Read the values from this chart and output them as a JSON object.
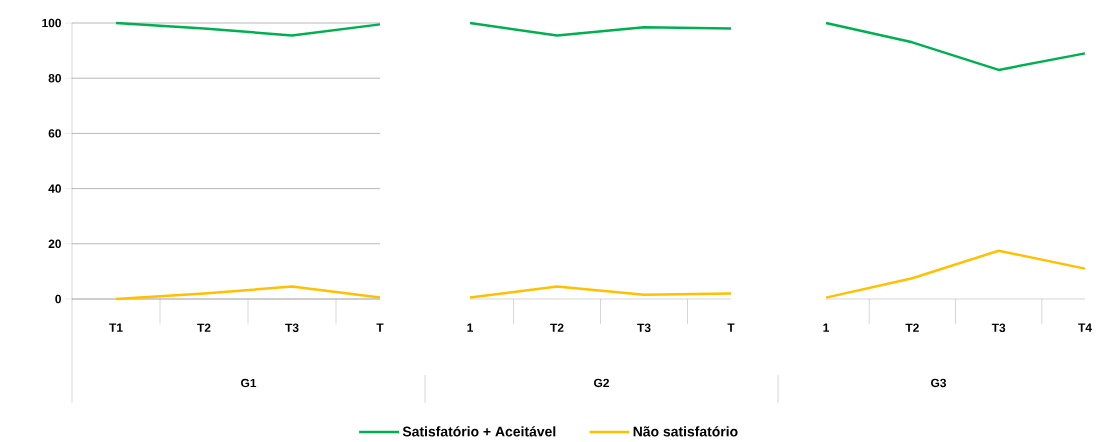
{
  "chart_data": [
    {
      "type": "line",
      "xlabel": "G1",
      "categories": [
        "T1",
        "T2",
        "T3",
        "T"
      ],
      "ylim": [
        0,
        100
      ],
      "yticks": [
        0,
        20,
        40,
        60,
        80,
        100
      ],
      "grid": "y",
      "legend": "bottom",
      "series": [
        {
          "name": "Satisfatório + Aceitável",
          "color": "#00b050",
          "values": [
            100,
            98,
            95.5,
            99.5
          ]
        },
        {
          "name": "Não satisfatório",
          "color": "#ffc000",
          "values": [
            0,
            2,
            4.5,
            0.5
          ]
        }
      ]
    },
    {
      "type": "line",
      "xlabel": "G2",
      "categories": [
        "1",
        "T2",
        "T3",
        "T"
      ],
      "ylim": [
        0,
        100
      ],
      "yticks": [
        0,
        20,
        40,
        60,
        80,
        100
      ],
      "grid": "y",
      "tick_labels": "x",
      "series": [
        {
          "color": "#00b050",
          "values": [
            100,
            95.5,
            98.5,
            98
          ]
        },
        {
          "color": "#ffc000",
          "values": [
            0.5,
            4.5,
            1.5,
            2
          ]
        }
      ]
    },
    {
      "type": "line",
      "xlabel": "G3",
      "categories": [
        "1",
        "T2",
        "T3",
        "T4"
      ],
      "ylim": [
        0,
        100
      ],
      "yticks": [
        0,
        20,
        40,
        60,
        80,
        100
      ],
      "grid": "y",
      "tick_labels": "x",
      "series": [
        {
          "color": "#00b050",
          "values": [
            100,
            93,
            83,
            89
          ]
        },
        {
          "color": "#ffc000",
          "values": [
            0.5,
            7.5,
            17.5,
            11
          ]
        }
      ]
    }
  ]
}
